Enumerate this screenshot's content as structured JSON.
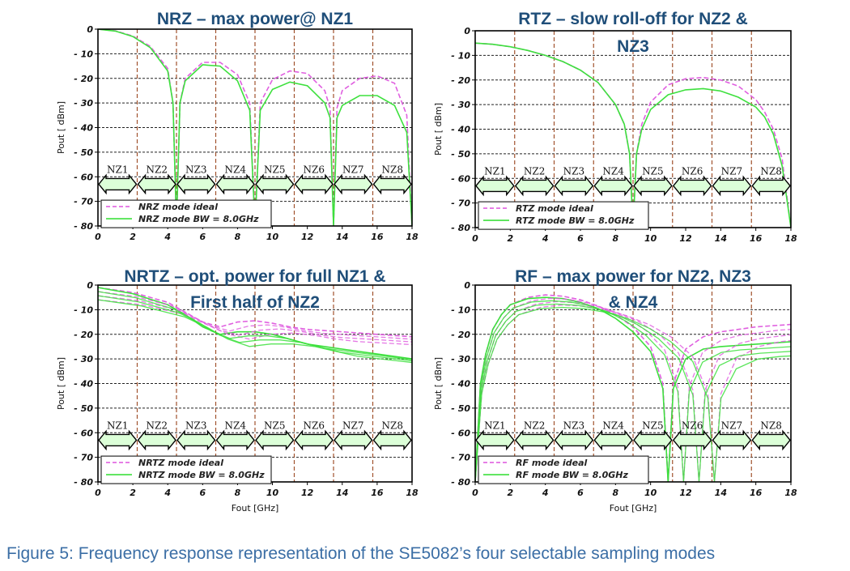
{
  "caption": "Figure 5: Frequency response representation of the SE5082’s four selectable sampling modes",
  "colors": {
    "ideal": "#e060e0",
    "bw": "#3de03d",
    "grid": "#222222",
    "nz_divider": "#a0522d",
    "arrow_fill": "#dcffd8",
    "title": "#1f4e79",
    "caption": "#3b6ea5"
  },
  "chart_data": [
    {
      "type": "line",
      "title_lines": [
        "NRZ – max power@ NZ1"
      ],
      "xlabel": "",
      "ylabel": "Pout [ dBm]",
      "xlim": [
        0,
        18
      ],
      "ylim": [
        -80,
        0
      ],
      "xticks": [
        "0",
        "2",
        "4",
        "6",
        "8",
        "10",
        "12",
        "14",
        "16",
        "18"
      ],
      "yticks": [
        "0",
        "- 10",
        "- 20",
        "- 30",
        "- 40",
        "- 50",
        "- 60",
        "- 70",
        "- 80"
      ],
      "nyquist_zones": [
        "NZ1",
        "NZ2",
        "NZ3",
        "NZ4",
        "NZ5",
        "NZ6",
        "NZ7",
        "NZ8"
      ],
      "nz_boundaries_ghz": [
        2.25,
        4.5,
        6.75,
        9.0,
        11.25,
        13.5,
        15.75
      ],
      "legend": [
        "NRZ mode ideal",
        "NRZ mode BW = 8.0GHz"
      ],
      "series": [
        {
          "name": "NRZ mode ideal",
          "style": "dashed",
          "x": [
            0,
            1,
            2,
            3,
            4,
            4.3,
            4.5,
            4.7,
            5,
            6,
            7,
            8,
            8.7,
            9,
            9.3,
            10,
            11,
            12,
            13,
            13.3,
            13.5,
            13.7,
            14,
            15,
            16,
            17,
            17.7,
            18
          ],
          "y": [
            0,
            -0.7,
            -2.8,
            -7,
            -16,
            -30,
            -80,
            -30,
            -20,
            -13.5,
            -13.5,
            -18.5,
            -30,
            -80,
            -30,
            -20.5,
            -17,
            -18,
            -25,
            -32,
            -80,
            -32,
            -25,
            -20,
            -19,
            -22,
            -35,
            -80
          ]
        },
        {
          "name": "NRZ mode BW = 8.0GHz",
          "style": "solid",
          "x": [
            0,
            1,
            2,
            3,
            4,
            4.3,
            4.5,
            4.7,
            5,
            6,
            7,
            8,
            8.7,
            9,
            9.3,
            10,
            11,
            12,
            13,
            13.3,
            13.5,
            13.7,
            14,
            15,
            16,
            17,
            17.7,
            18
          ],
          "y": [
            0,
            -0.8,
            -3,
            -7.5,
            -17,
            -30,
            -80,
            -30,
            -21,
            -14.5,
            -15,
            -21,
            -33,
            -80,
            -33,
            -24.5,
            -21.5,
            -23,
            -30,
            -36,
            -80,
            -36,
            -31,
            -27,
            -27,
            -31,
            -42,
            -80
          ]
        }
      ]
    },
    {
      "type": "line",
      "title_lines": [
        "RTZ – slow roll-off for NZ2 &",
        "NZ3"
      ],
      "xlabel": "",
      "ylabel": "Pout [ dBm]",
      "xlim": [
        0,
        18
      ],
      "ylim": [
        -80,
        0
      ],
      "xticks": [
        "0",
        "2",
        "4",
        "6",
        "8",
        "10",
        "12",
        "14",
        "16",
        "18"
      ],
      "yticks": [
        "0",
        "- 10",
        "- 20",
        "- 30",
        "- 40",
        "- 50",
        "- 60",
        "- 70",
        "- 80"
      ],
      "nyquist_zones": [
        "NZ1",
        "NZ2",
        "NZ3",
        "NZ4",
        "NZ5",
        "NZ6",
        "NZ7",
        "NZ8"
      ],
      "nz_boundaries_ghz": [
        2.25,
        4.5,
        6.75,
        9.0,
        11.25,
        13.5,
        15.75
      ],
      "legend": [
        "RTZ mode ideal",
        "RTZ mode BW = 8.0GHz"
      ],
      "series": [
        {
          "name": "RTZ mode ideal",
          "style": "dashed",
          "x": [
            0,
            1,
            2,
            3,
            4,
            5,
            6,
            7,
            8,
            8.5,
            8.8,
            9,
            9.2,
            9.5,
            10,
            11,
            12,
            13,
            14,
            15,
            16,
            16.5,
            17,
            17.5,
            18
          ],
          "y": [
            -5,
            -5.5,
            -6.5,
            -8,
            -10,
            -12.5,
            -16,
            -21,
            -30,
            -38,
            -50,
            -80,
            -50,
            -38,
            -29,
            -22,
            -19.5,
            -19,
            -20,
            -22.5,
            -28,
            -33,
            -40,
            -52,
            -80
          ]
        },
        {
          "name": "RTZ mode BW = 8.0GHz",
          "style": "solid",
          "x": [
            0,
            1,
            2,
            3,
            4,
            5,
            6,
            7,
            8,
            8.5,
            8.8,
            9,
            9.2,
            9.5,
            10,
            11,
            12,
            13,
            14,
            15,
            16,
            16.5,
            17,
            17.5,
            18
          ],
          "y": [
            -5,
            -5.5,
            -6.5,
            -8,
            -10,
            -12.5,
            -16,
            -21,
            -30,
            -38,
            -50,
            -80,
            -50,
            -40,
            -32,
            -26,
            -24,
            -23.5,
            -24.5,
            -27,
            -31,
            -35,
            -42,
            -55,
            -80
          ]
        }
      ]
    },
    {
      "type": "line",
      "title_lines": [
        "NRTZ – opt. power for full NZ1 &",
        "First half of NZ2"
      ],
      "xlabel": "Fout [GHz]",
      "ylabel": "Pout [ dBm]",
      "xlim": [
        0,
        18
      ],
      "ylim": [
        -80,
        0
      ],
      "xticks": [
        "0",
        "2",
        "4",
        "6",
        "8",
        "10",
        "12",
        "14",
        "16",
        "18"
      ],
      "yticks": [
        "0",
        "- 10",
        "- 20",
        "- 30",
        "- 40",
        "- 50",
        "- 60",
        "- 70",
        "- 80"
      ],
      "nyquist_zones": [
        "NZ1",
        "NZ2",
        "NZ3",
        "NZ4",
        "NZ5",
        "NZ6",
        "NZ7",
        "NZ8"
      ],
      "nz_boundaries_ghz": [
        2.25,
        4.5,
        6.75,
        9.0,
        11.25,
        13.5,
        15.75
      ],
      "legend": [
        "NRTZ mode ideal",
        "NRTZ mode BW = 8.0GHz"
      ],
      "series": [
        {
          "name": "NRTZ mode ideal",
          "style": "dashed",
          "x": [
            0,
            2,
            4,
            5,
            6,
            7,
            8,
            9,
            10,
            11,
            12,
            13,
            14,
            15,
            16,
            17,
            18
          ],
          "y": [
            -1,
            -3,
            -7,
            -11,
            -15,
            -17,
            -15,
            -14.5,
            -15.5,
            -17,
            -18,
            -18.5,
            -19,
            -19.5,
            -20,
            -20.5,
            -21
          ]
        },
        {
          "name": "NRTZ mode BW = 8.0GHz",
          "style": "solid",
          "x": [
            0,
            2,
            4,
            5,
            6,
            7,
            8,
            9,
            10,
            11,
            12,
            13,
            14,
            15,
            16,
            17,
            18
          ],
          "y": [
            -1,
            -3.5,
            -8,
            -12,
            -17,
            -20,
            -19,
            -19,
            -20,
            -22,
            -24,
            -25,
            -26,
            -27,
            -28,
            -29,
            -30
          ]
        }
      ]
    },
    {
      "type": "line",
      "title_lines": [
        "RF – max power for NZ2, NZ3",
        "& NZ4"
      ],
      "xlabel": "Fout [GHz]",
      "ylabel": "Pout [ dBm]",
      "xlim": [
        0,
        18
      ],
      "ylim": [
        -80,
        0
      ],
      "xticks": [
        "0",
        "2",
        "4",
        "6",
        "8",
        "10",
        "12",
        "14",
        "16",
        "18"
      ],
      "yticks": [
        "0",
        "- 10",
        "- 20",
        "- 30",
        "- 40",
        "- 50",
        "- 60",
        "- 70",
        "- 80"
      ],
      "nyquist_zones": [
        "NZ1",
        "NZ2",
        "NZ3",
        "NZ4",
        "NZ5",
        "NZ6",
        "NZ7",
        "NZ8"
      ],
      "nz_boundaries_ghz": [
        2.25,
        4.5,
        6.75,
        9.0,
        11.25,
        13.5,
        15.75
      ],
      "legend": [
        "RF mode ideal",
        "RF mode BW = 8.0GHz"
      ],
      "series": [
        {
          "name": "RF mode ideal",
          "style": "dashed",
          "x": [
            0,
            0.3,
            0.6,
            1,
            1.5,
            2,
            3,
            4,
            5,
            6,
            7,
            8,
            9,
            10,
            10.7,
            11,
            11.3,
            12,
            13,
            14,
            15,
            16,
            17,
            18
          ],
          "y": [
            -80,
            -40,
            -28,
            -18,
            -12,
            -8,
            -5,
            -4,
            -4.5,
            -6,
            -8.5,
            -12,
            -17,
            -25,
            -40,
            -80,
            -40,
            -26,
            -21,
            -19,
            -18,
            -17,
            -16.5,
            -16
          ]
        },
        {
          "name": "RF mode BW = 8.0GHz",
          "style": "solid",
          "x": [
            0,
            0.3,
            0.6,
            1,
            1.5,
            2,
            3,
            4,
            5,
            6,
            7,
            8,
            9,
            10,
            10.7,
            11,
            11.3,
            12,
            13,
            14,
            15,
            16,
            17,
            18
          ],
          "y": [
            -80,
            -40,
            -28,
            -18,
            -12,
            -8,
            -5.5,
            -5,
            -5.5,
            -7,
            -9.5,
            -13.5,
            -19,
            -27,
            -42,
            -80,
            -42,
            -30,
            -26,
            -25,
            -24.5,
            -24,
            -23.5,
            -23
          ]
        }
      ]
    }
  ]
}
